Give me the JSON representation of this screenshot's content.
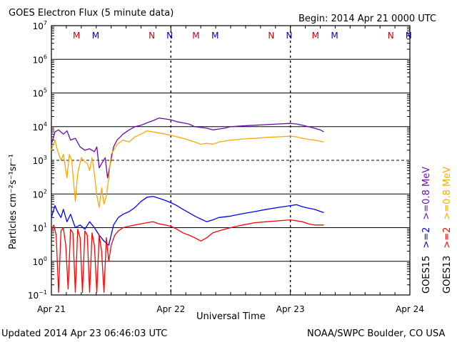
{
  "header": {
    "title": "GOES Electron Flux (5 minute data)",
    "begin": "Begin: 2014 Apr 21 0000 UTC"
  },
  "footer": {
    "updated": "Updated 2014 Apr 23 06:46:03 UTC",
    "credit": "NOAA/SWPC Boulder, CO USA"
  },
  "colors": {
    "goes13_high": "#ff0000",
    "goes13_low": "#ffa500",
    "goes15_high": "#0000ff",
    "goes15_low": "#6a0dad",
    "marker_M": "#cc0000",
    "marker_N": "#0000cc"
  },
  "chart_data": {
    "type": "line",
    "title": "GOES Electron Flux (5 minute data)",
    "xlabel": "Universal Time",
    "ylabel": "Particles cm⁻²s⁻¹sr⁻¹",
    "ylog": true,
    "ylim": [
      0.1,
      10000000
    ],
    "xlim_days": [
      0,
      3
    ],
    "x_tick_labels": [
      "Apr 21",
      "Apr 22",
      "Apr 23",
      "Apr 24"
    ],
    "y_tick_labels": [
      {
        "base": "10",
        "exp": "7"
      },
      {
        "base": "10",
        "exp": "6"
      },
      {
        "base": "10",
        "exp": "5"
      },
      {
        "base": "10",
        "exp": "4"
      },
      {
        "base": "10",
        "exp": "3"
      },
      {
        "base": "10",
        "exp": "2"
      },
      {
        "base": "10",
        "exp": "1"
      },
      {
        "base": "10",
        "exp": "0"
      },
      {
        "base": "10",
        "exp": "−1"
      }
    ],
    "markers": [
      {
        "label": "M",
        "x": 0.21,
        "color": "#cc0000"
      },
      {
        "label": "M",
        "x": 0.37,
        "color": "#0000cc"
      },
      {
        "label": "N",
        "x": 0.84,
        "color": "#cc0000"
      },
      {
        "label": "N",
        "x": 0.99,
        "color": "#0000cc"
      },
      {
        "label": "M",
        "x": 1.21,
        "color": "#cc0000"
      },
      {
        "label": "M",
        "x": 1.37,
        "color": "#0000cc"
      },
      {
        "label": "N",
        "x": 1.84,
        "color": "#cc0000"
      },
      {
        "label": "N",
        "x": 1.99,
        "color": "#0000cc"
      },
      {
        "label": "M",
        "x": 2.21,
        "color": "#cc0000"
      },
      {
        "label": "M",
        "x": 2.37,
        "color": "#0000cc"
      },
      {
        "label": "N",
        "x": 2.84,
        "color": "#cc0000"
      },
      {
        "label": "N",
        "x": 2.99,
        "color": "#0000cc"
      }
    ],
    "legend": {
      "right_col1": [
        {
          "text": ">=0.8 MeV",
          "color": "#6a0dad"
        },
        {
          "text": ">=2",
          "color": "#0000ff"
        },
        {
          "text": "GOES15",
          "color": "#000000"
        }
      ],
      "right_col2": [
        {
          "text": ">=0.8 MeV",
          "color": "#ffa500"
        },
        {
          "text": ">=2",
          "color": "#ff0000"
        },
        {
          "text": "GOES13",
          "color": "#000000"
        }
      ]
    },
    "series": [
      {
        "name": "GOES15 >=0.8 MeV",
        "color": "#6a0dad",
        "points": [
          [
            0.0,
            3000
          ],
          [
            0.03,
            7000
          ],
          [
            0.06,
            8000
          ],
          [
            0.1,
            6000
          ],
          [
            0.13,
            7500
          ],
          [
            0.16,
            4000
          ],
          [
            0.2,
            4500
          ],
          [
            0.24,
            2500
          ],
          [
            0.28,
            2000
          ],
          [
            0.32,
            2200
          ],
          [
            0.36,
            1800
          ],
          [
            0.38,
            2500
          ],
          [
            0.4,
            600
          ],
          [
            0.42,
            800
          ],
          [
            0.45,
            1200
          ],
          [
            0.47,
            300
          ],
          [
            0.49,
            700
          ],
          [
            0.52,
            2500
          ],
          [
            0.55,
            4000
          ],
          [
            0.6,
            6000
          ],
          [
            0.65,
            8000
          ],
          [
            0.7,
            10000
          ],
          [
            0.75,
            11000
          ],
          [
            0.8,
            13000
          ],
          [
            0.85,
            15000
          ],
          [
            0.9,
            18000
          ],
          [
            0.95,
            17000
          ],
          [
            1.0,
            16000
          ],
          [
            1.05,
            14000
          ],
          [
            1.1,
            13000
          ],
          [
            1.15,
            12000
          ],
          [
            1.2,
            10000
          ],
          [
            1.25,
            9500
          ],
          [
            1.3,
            9000
          ],
          [
            1.35,
            8000
          ],
          [
            1.4,
            8500
          ],
          [
            1.45,
            9000
          ],
          [
            1.5,
            10000
          ],
          [
            1.6,
            10500
          ],
          [
            1.7,
            11000
          ],
          [
            1.8,
            11500
          ],
          [
            1.9,
            12000
          ],
          [
            2.0,
            12500
          ],
          [
            2.05,
            12000
          ],
          [
            2.1,
            11000
          ],
          [
            2.15,
            10000
          ],
          [
            2.2,
            9000
          ],
          [
            2.25,
            8000
          ],
          [
            2.28,
            7000
          ]
        ]
      },
      {
        "name": "GOES13 >=0.8 MeV",
        "color": "#ffa500",
        "points": [
          [
            0.0,
            2000
          ],
          [
            0.03,
            4000
          ],
          [
            0.05,
            2000
          ],
          [
            0.08,
            1000
          ],
          [
            0.1,
            1500
          ],
          [
            0.13,
            300
          ],
          [
            0.15,
            1500
          ],
          [
            0.17,
            1000
          ],
          [
            0.2,
            60
          ],
          [
            0.22,
            400
          ],
          [
            0.25,
            1200
          ],
          [
            0.28,
            900
          ],
          [
            0.3,
            800
          ],
          [
            0.32,
            500
          ],
          [
            0.34,
            1200
          ],
          [
            0.36,
            400
          ],
          [
            0.38,
            90
          ],
          [
            0.4,
            40
          ],
          [
            0.42,
            150
          ],
          [
            0.44,
            50
          ],
          [
            0.46,
            90
          ],
          [
            0.48,
            300
          ],
          [
            0.5,
            1500
          ],
          [
            0.55,
            3000
          ],
          [
            0.6,
            4000
          ],
          [
            0.65,
            3500
          ],
          [
            0.7,
            5000
          ],
          [
            0.75,
            6000
          ],
          [
            0.8,
            7500
          ],
          [
            0.85,
            7000
          ],
          [
            0.9,
            6500
          ],
          [
            0.95,
            6000
          ],
          [
            1.0,
            5500
          ],
          [
            1.05,
            5000
          ],
          [
            1.1,
            4500
          ],
          [
            1.15,
            4000
          ],
          [
            1.2,
            3500
          ],
          [
            1.25,
            3000
          ],
          [
            1.3,
            3200
          ],
          [
            1.35,
            3000
          ],
          [
            1.4,
            3500
          ],
          [
            1.5,
            4000
          ],
          [
            1.6,
            4300
          ],
          [
            1.7,
            4500
          ],
          [
            1.8,
            4800
          ],
          [
            1.9,
            5000
          ],
          [
            2.0,
            5200
          ],
          [
            2.05,
            5000
          ],
          [
            2.1,
            4500
          ],
          [
            2.15,
            4200
          ],
          [
            2.2,
            4000
          ],
          [
            2.28,
            3500
          ]
        ]
      },
      {
        "name": "GOES15 >=2 MeV",
        "color": "#0000ff",
        "points": [
          [
            0.0,
            20
          ],
          [
            0.03,
            45
          ],
          [
            0.05,
            30
          ],
          [
            0.08,
            20
          ],
          [
            0.1,
            35
          ],
          [
            0.13,
            15
          ],
          [
            0.16,
            25
          ],
          [
            0.2,
            10
          ],
          [
            0.24,
            12
          ],
          [
            0.28,
            9
          ],
          [
            0.32,
            15
          ],
          [
            0.36,
            10
          ],
          [
            0.4,
            6
          ],
          [
            0.44,
            4
          ],
          [
            0.48,
            3
          ],
          [
            0.52,
            12
          ],
          [
            0.56,
            20
          ],
          [
            0.6,
            25
          ],
          [
            0.65,
            30
          ],
          [
            0.7,
            40
          ],
          [
            0.75,
            60
          ],
          [
            0.8,
            80
          ],
          [
            0.85,
            85
          ],
          [
            0.9,
            75
          ],
          [
            0.95,
            65
          ],
          [
            1.0,
            55
          ],
          [
            1.05,
            45
          ],
          [
            1.1,
            35
          ],
          [
            1.15,
            28
          ],
          [
            1.2,
            22
          ],
          [
            1.25,
            18
          ],
          [
            1.3,
            15
          ],
          [
            1.35,
            17
          ],
          [
            1.4,
            20
          ],
          [
            1.5,
            22
          ],
          [
            1.6,
            26
          ],
          [
            1.7,
            30
          ],
          [
            1.8,
            35
          ],
          [
            1.9,
            40
          ],
          [
            2.0,
            45
          ],
          [
            2.05,
            48
          ],
          [
            2.1,
            42
          ],
          [
            2.15,
            38
          ],
          [
            2.2,
            35
          ],
          [
            2.28,
            28
          ]
        ]
      },
      {
        "name": "GOES13 >=2 MeV",
        "color": "#ff0000",
        "points": [
          [
            0.0,
            9
          ],
          [
            0.02,
            12
          ],
          [
            0.04,
            6
          ],
          [
            0.06,
            0.12
          ],
          [
            0.08,
            8
          ],
          [
            0.1,
            10
          ],
          [
            0.12,
            3
          ],
          [
            0.14,
            0.15
          ],
          [
            0.16,
            9
          ],
          [
            0.18,
            7
          ],
          [
            0.2,
            0.12
          ],
          [
            0.22,
            9
          ],
          [
            0.24,
            5
          ],
          [
            0.26,
            0.12
          ],
          [
            0.28,
            8
          ],
          [
            0.3,
            6
          ],
          [
            0.32,
            0.12
          ],
          [
            0.34,
            7
          ],
          [
            0.36,
            3
          ],
          [
            0.38,
            0.12
          ],
          [
            0.4,
            6
          ],
          [
            0.42,
            2
          ],
          [
            0.44,
            0.12
          ],
          [
            0.46,
            5
          ],
          [
            0.48,
            1
          ],
          [
            0.5,
            3
          ],
          [
            0.53,
            6
          ],
          [
            0.56,
            8
          ],
          [
            0.6,
            10
          ],
          [
            0.65,
            11
          ],
          [
            0.7,
            12
          ],
          [
            0.75,
            13
          ],
          [
            0.8,
            14
          ],
          [
            0.85,
            15
          ],
          [
            0.9,
            13
          ],
          [
            0.95,
            12
          ],
          [
            1.0,
            11
          ],
          [
            1.05,
            9
          ],
          [
            1.1,
            7
          ],
          [
            1.15,
            6
          ],
          [
            1.2,
            5
          ],
          [
            1.25,
            4
          ],
          [
            1.3,
            5
          ],
          [
            1.35,
            7
          ],
          [
            1.4,
            8
          ],
          [
            1.5,
            10
          ],
          [
            1.6,
            12
          ],
          [
            1.7,
            14
          ],
          [
            1.8,
            15
          ],
          [
            1.9,
            16
          ],
          [
            2.0,
            17
          ],
          [
            2.05,
            16
          ],
          [
            2.1,
            15
          ],
          [
            2.15,
            13
          ],
          [
            2.2,
            12
          ],
          [
            2.28,
            12
          ]
        ]
      }
    ]
  }
}
